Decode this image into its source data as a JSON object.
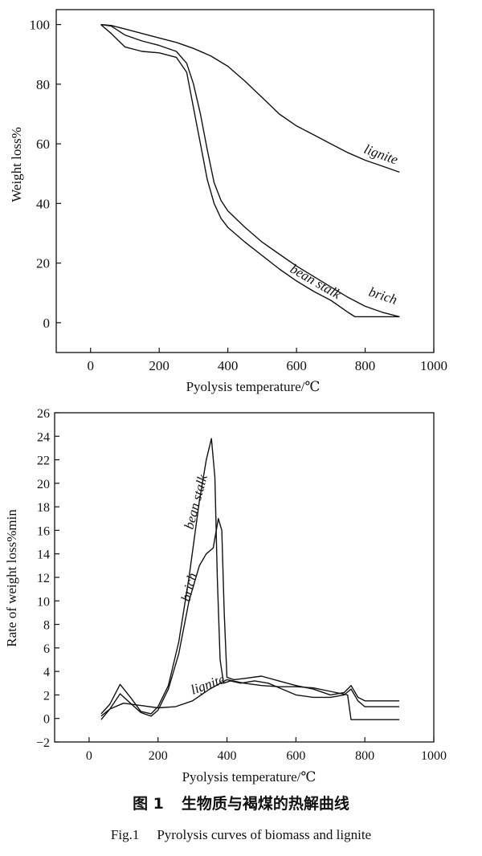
{
  "chart_data": [
    {
      "type": "line",
      "xlabel": "Pyolysis temperature/℃",
      "ylabel": "Weight loss%",
      "xlim": [
        -100,
        1000
      ],
      "ylim": [
        -10,
        105
      ],
      "xticks": [
        "0",
        "200",
        "400",
        "600",
        "800",
        "1000"
      ],
      "yticks": [
        "0",
        "20",
        "40",
        "60",
        "80",
        "100"
      ],
      "grid": false,
      "series": [
        {
          "name": "lignite",
          "x": [
            30,
            60,
            100,
            150,
            200,
            250,
            300,
            350,
            400,
            450,
            500,
            550,
            600,
            650,
            700,
            750,
            800,
            850,
            900
          ],
          "y": [
            100,
            99.7,
            98.5,
            97,
            95.5,
            94,
            92,
            89.5,
            86,
            81,
            75.5,
            70,
            66,
            63,
            60,
            57,
            54.5,
            52.5,
            50.5
          ]
        },
        {
          "name": "bean stalk",
          "x": [
            30,
            60,
            100,
            150,
            200,
            250,
            280,
            300,
            320,
            340,
            360,
            380,
            400,
            450,
            500,
            550,
            600,
            650,
            700,
            750,
            770,
            800,
            850,
            900
          ],
          "y": [
            100,
            97,
            92.5,
            91,
            90.5,
            89,
            84,
            72,
            60,
            48,
            40,
            35,
            32,
            27,
            22.5,
            18,
            14,
            10.5,
            7.5,
            3.5,
            2,
            2,
            2,
            2
          ]
        },
        {
          "name": "brich",
          "x": [
            30,
            60,
            100,
            150,
            200,
            250,
            280,
            300,
            320,
            340,
            360,
            380,
            400,
            450,
            500,
            550,
            600,
            650,
            700,
            750,
            800,
            850,
            900
          ],
          "y": [
            100,
            99.5,
            96.5,
            94.5,
            93,
            91,
            87,
            80,
            70,
            58,
            47,
            41,
            37.5,
            32,
            27,
            23,
            19,
            15.5,
            12,
            8.5,
            5.5,
            3.5,
            2
          ]
        }
      ]
    },
    {
      "type": "line",
      "xlabel": "Pyolysis temperature/℃",
      "ylabel": "Rate of weight loss%min",
      "xlim": [
        -100,
        1000
      ],
      "ylim": [
        -2,
        26
      ],
      "xticks": [
        "0",
        "200",
        "400",
        "600",
        "800",
        "1000"
      ],
      "yticks": [
        "-2",
        "0",
        "2",
        "4",
        "6",
        "8",
        "10",
        "12",
        "14",
        "16",
        "18",
        "20",
        "22",
        "24",
        "26"
      ],
      "grid": false,
      "series": [
        {
          "name": "bean stalk",
          "x": [
            35,
            60,
            90,
            120,
            150,
            180,
            200,
            230,
            260,
            290,
            320,
            340,
            355,
            365,
            372,
            380,
            390,
            410,
            440,
            480,
            520,
            560,
            600,
            650,
            700,
            740,
            760,
            780,
            800,
            850,
            900
          ],
          "y": [
            0.4,
            1.2,
            2.9,
            1.8,
            0.6,
            0.4,
            1.0,
            2.8,
            6.5,
            12.0,
            18.5,
            22.0,
            23.8,
            20.5,
            12.0,
            5.0,
            3.0,
            3.2,
            3.0,
            3.2,
            3.0,
            2.5,
            2.0,
            1.8,
            1.8,
            2.0,
            2.5,
            1.5,
            1.0,
            1.0,
            1.0
          ]
        },
        {
          "name": "brich",
          "x": [
            35,
            60,
            90,
            120,
            150,
            180,
            200,
            230,
            260,
            290,
            320,
            340,
            360,
            375,
            385,
            392,
            400,
            420,
            450,
            500,
            550,
            600,
            650,
            700,
            740,
            760,
            780,
            800,
            850,
            900
          ],
          "y": [
            0.2,
            0.8,
            2.1,
            1.3,
            0.5,
            0.2,
            0.7,
            2.5,
            5.5,
            10.0,
            13.0,
            14.0,
            14.5,
            17.0,
            16.0,
            9.0,
            3.5,
            3.3,
            3.4,
            3.6,
            3.2,
            2.8,
            2.5,
            2.0,
            2.2,
            2.8,
            1.8,
            1.5,
            1.5,
            1.5
          ]
        },
        {
          "name": "lignite",
          "x": [
            35,
            60,
            100,
            150,
            200,
            250,
            300,
            350,
            400,
            450,
            500,
            550,
            600,
            650,
            700,
            750,
            760,
            800,
            850,
            900
          ],
          "y": [
            -0.1,
            0.8,
            1.3,
            1.1,
            0.9,
            1.0,
            1.5,
            2.5,
            3.3,
            3.0,
            2.8,
            2.7,
            2.7,
            2.6,
            2.3,
            2.0,
            -0.1,
            -0.1,
            -0.1,
            -0.1
          ]
        }
      ]
    }
  ],
  "caption": {
    "cn_prefix": "图 1",
    "cn_text": "生物质与褐煤的热解曲线",
    "en_prefix": "Fig.1",
    "en_text": "Pyrolysis curves of biomass and lignite"
  }
}
